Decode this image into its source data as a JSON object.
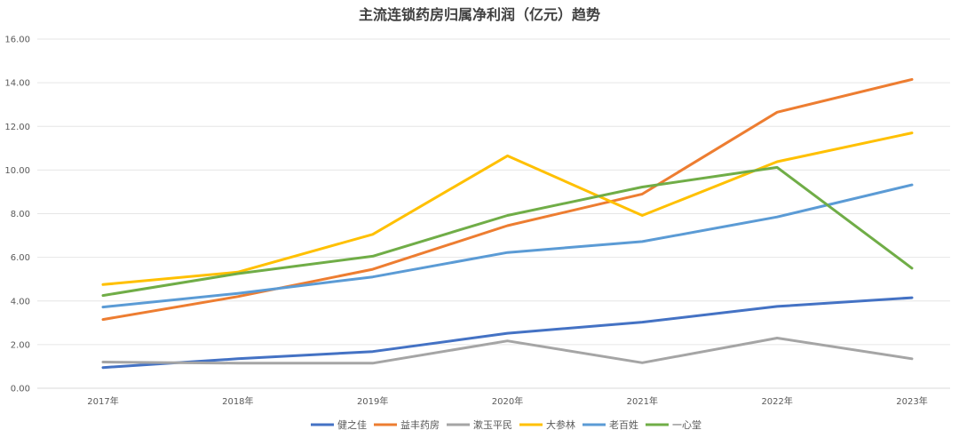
{
  "chart_data": {
    "type": "line",
    "title": "主流连锁药房归属净利润（亿元）趋势",
    "categories": [
      "2017年",
      "2018年",
      "2019年",
      "2020年",
      "2021年",
      "2022年",
      "2023年"
    ],
    "ylim": [
      0,
      16
    ],
    "yticks": [
      "0.00",
      "2.00",
      "4.00",
      "6.00",
      "8.00",
      "10.00",
      "12.00",
      "14.00",
      "16.00"
    ],
    "grid": true,
    "legend_position": "bottom",
    "series": [
      {
        "name": "健之佳",
        "color": "#4472C4",
        "values": [
          0.95,
          1.35,
          1.68,
          2.52,
          3.03,
          3.75,
          4.15
        ]
      },
      {
        "name": "益丰药房",
        "color": "#ED7D31",
        "values": [
          3.15,
          4.2,
          5.45,
          7.45,
          8.9,
          12.65,
          14.15
        ]
      },
      {
        "name": "漱玉平民",
        "color": "#A5A5A5",
        "values": [
          1.2,
          1.15,
          1.15,
          2.17,
          1.17,
          2.3,
          1.35
        ]
      },
      {
        "name": "大参林",
        "color": "#FFC000",
        "values": [
          4.75,
          5.32,
          7.05,
          10.65,
          7.92,
          10.38,
          11.7
        ]
      },
      {
        "name": "老百姓",
        "color": "#5B9BD5",
        "values": [
          3.72,
          4.35,
          5.1,
          6.22,
          6.72,
          7.85,
          9.32
        ]
      },
      {
        "name": "一心堂",
        "color": "#70AD47",
        "values": [
          4.25,
          5.25,
          6.05,
          7.92,
          9.22,
          10.12,
          5.5
        ]
      }
    ]
  }
}
